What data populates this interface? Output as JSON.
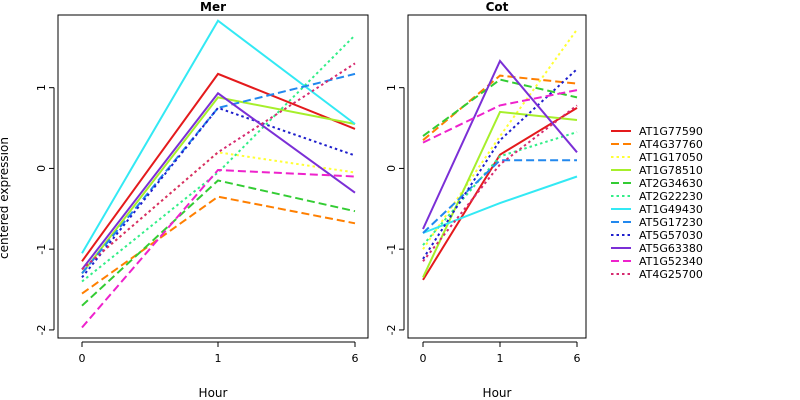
{
  "chart_data": [
    {
      "type": "line",
      "title": "Mer",
      "xlabel": "Hour",
      "ylabel": "centered expression",
      "categories": [
        "0",
        "1",
        "6"
      ],
      "ylim": [
        -2.1,
        1.9
      ],
      "yticks": [
        -2,
        -1,
        0,
        1
      ],
      "series": [
        {
          "name": "AT1G77590",
          "values": [
            -1.15,
            1.17,
            0.49
          ]
        },
        {
          "name": "AT4G37760",
          "values": [
            -1.55,
            -0.35,
            -0.68
          ]
        },
        {
          "name": "AT1G17050",
          "values": [
            -1.25,
            0.2,
            -0.05
          ]
        },
        {
          "name": "AT1G78510",
          "values": [
            -1.3,
            0.88,
            0.55
          ]
        },
        {
          "name": "AT2G34630",
          "values": [
            -1.7,
            -0.15,
            -0.53
          ]
        },
        {
          "name": "AT2G22230",
          "values": [
            -1.4,
            -0.05,
            1.65
          ]
        },
        {
          "name": "AT1G49430",
          "values": [
            -1.05,
            1.83,
            0.55
          ]
        },
        {
          "name": "AT5G17230",
          "values": [
            -1.3,
            0.75,
            1.17
          ]
        },
        {
          "name": "AT5G57030",
          "values": [
            -1.35,
            0.75,
            0.16
          ]
        },
        {
          "name": "AT5G63380",
          "values": [
            -1.25,
            0.93,
            -0.3
          ]
        },
        {
          "name": "AT1G52340",
          "values": [
            -1.97,
            -0.02,
            -0.1
          ]
        },
        {
          "name": "AT4G25700",
          "values": [
            -1.25,
            0.2,
            1.3
          ]
        }
      ]
    },
    {
      "type": "line",
      "title": "Cot",
      "xlabel": "Hour",
      "ylabel": "",
      "categories": [
        "0",
        "1",
        "6"
      ],
      "ylim": [
        -2.1,
        1.9
      ],
      "yticks": [
        -2,
        -1,
        0,
        1
      ],
      "series": [
        {
          "name": "AT1G77590",
          "values": [
            -1.38,
            0.17,
            0.75
          ]
        },
        {
          "name": "AT4G37760",
          "values": [
            0.35,
            1.15,
            1.05
          ]
        },
        {
          "name": "AT1G17050",
          "values": [
            -1.0,
            0.4,
            1.72
          ]
        },
        {
          "name": "AT1G78510",
          "values": [
            -1.35,
            0.7,
            0.6
          ]
        },
        {
          "name": "AT2G34630",
          "values": [
            0.4,
            1.1,
            0.88
          ]
        },
        {
          "name": "AT2G22230",
          "values": [
            -0.95,
            0.15,
            0.45
          ]
        },
        {
          "name": "AT1G49430",
          "values": [
            -0.8,
            -0.43,
            -0.1
          ]
        },
        {
          "name": "AT5G17230",
          "values": [
            -0.8,
            0.1,
            0.1
          ]
        },
        {
          "name": "AT5G57030",
          "values": [
            -1.12,
            0.35,
            1.23
          ]
        },
        {
          "name": "AT5G63380",
          "values": [
            -0.75,
            1.33,
            0.2
          ]
        },
        {
          "name": "AT1G52340",
          "values": [
            0.32,
            0.78,
            0.97
          ]
        },
        {
          "name": "AT4G25700",
          "values": [
            -1.15,
            0.05,
            0.78
          ]
        }
      ]
    }
  ],
  "legend": {
    "placement": "right",
    "entries": [
      {
        "name": "AT1G77590",
        "color": "#e41a1c",
        "dash": "solid"
      },
      {
        "name": "AT4G37760",
        "color": "#ff7f00",
        "dash": "dashed"
      },
      {
        "name": "AT1G17050",
        "color": "#ffff33",
        "dash": "dotted"
      },
      {
        "name": "AT1G78510",
        "color": "#a6ef2b",
        "dash": "solid"
      },
      {
        "name": "AT2G34630",
        "color": "#33cc33",
        "dash": "dashed"
      },
      {
        "name": "AT2G22230",
        "color": "#33ee88",
        "dash": "dotted"
      },
      {
        "name": "AT1G49430",
        "color": "#33e9f4",
        "dash": "solid"
      },
      {
        "name": "AT5G17230",
        "color": "#2288ee",
        "dash": "dashed"
      },
      {
        "name": "AT5G57030",
        "color": "#1f1fcc",
        "dash": "dotted"
      },
      {
        "name": "AT5G63380",
        "color": "#7b2fd6",
        "dash": "solid"
      },
      {
        "name": "AT1G52340",
        "color": "#ee22cc",
        "dash": "dashed"
      },
      {
        "name": "AT4G25700",
        "color": "#d62a6f",
        "dash": "dotted"
      }
    ]
  }
}
